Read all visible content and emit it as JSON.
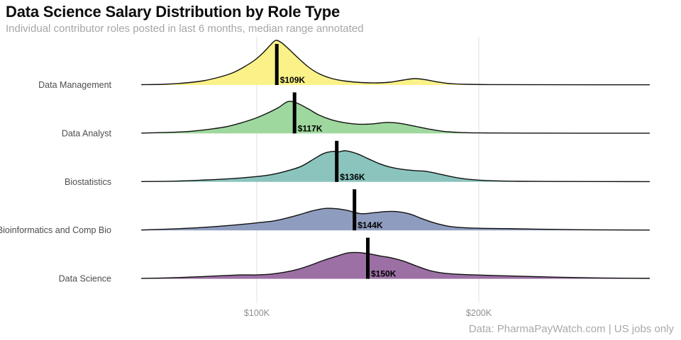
{
  "header": {
    "title": "Data Science Salary Distribution by Role Type",
    "subtitle": "Individual contributor roles posted in last 6 months, median range annotated"
  },
  "footer": {
    "credit": "Data: PharmaPayWatch.com | US jobs only"
  },
  "chart_data": {
    "type": "area",
    "variant": "ridgeline-density",
    "title": "Data Science Salary Distribution by Role Type",
    "xlabel": "",
    "ylabel": "",
    "x_unit": "USD thousands (salary)",
    "x_axis_range_k": [
      48,
      277
    ],
    "grid": "vertical-only",
    "legend_position": "none",
    "x_ticks": [
      {
        "value_k": 100,
        "label": "$100K"
      },
      {
        "value_k": 200,
        "label": "$200K"
      }
    ],
    "series": [
      {
        "label": "Data Management",
        "median_k": 109,
        "median_label": "$109K",
        "color": "#FAF288",
        "density": [
          [
            48,
            0.5
          ],
          [
            58,
            1
          ],
          [
            68,
            3
          ],
          [
            76,
            6
          ],
          [
            83,
            11
          ],
          [
            89,
            17
          ],
          [
            94,
            25
          ],
          [
            99,
            35
          ],
          [
            103,
            46
          ],
          [
            106,
            56
          ],
          [
            108.5,
            63
          ],
          [
            111,
            60
          ],
          [
            114,
            52
          ],
          [
            118,
            40
          ],
          [
            123,
            26
          ],
          [
            128,
            16
          ],
          [
            134,
            9
          ],
          [
            140,
            5.5
          ],
          [
            147,
            3.5
          ],
          [
            154,
            3
          ],
          [
            160,
            4
          ],
          [
            166,
            7
          ],
          [
            171,
            9
          ],
          [
            176,
            7.5
          ],
          [
            181,
            4.5
          ],
          [
            187,
            2
          ],
          [
            194,
            1
          ],
          [
            205,
            0.6
          ],
          [
            230,
            0.4
          ],
          [
            277,
            0.3
          ]
        ]
      },
      {
        "label": "Data Analyst",
        "median_k": 117,
        "median_label": "$117K",
        "color": "#9FD89E",
        "density": [
          [
            48,
            0.5
          ],
          [
            60,
            1.5
          ],
          [
            70,
            3
          ],
          [
            80,
            6.5
          ],
          [
            87,
            10
          ],
          [
            93,
            15
          ],
          [
            99,
            21
          ],
          [
            105,
            29
          ],
          [
            110,
            37
          ],
          [
            114,
            45
          ],
          [
            118,
            43
          ],
          [
            123,
            35
          ],
          [
            128,
            26
          ],
          [
            134,
            19
          ],
          [
            140,
            15
          ],
          [
            146,
            13
          ],
          [
            152,
            13.5
          ],
          [
            158,
            15.5
          ],
          [
            164,
            14.5
          ],
          [
            170,
            11
          ],
          [
            177,
            6.5
          ],
          [
            184,
            3
          ],
          [
            191,
            1.5
          ],
          [
            200,
            0.8
          ],
          [
            220,
            0.5
          ],
          [
            277,
            0.3
          ]
        ]
      },
      {
        "label": "Biostatistics",
        "median_k": 136,
        "median_label": "$136K",
        "color": "#8AC4BD",
        "density": [
          [
            48,
            0.5
          ],
          [
            62,
            1
          ],
          [
            75,
            2.5
          ],
          [
            88,
            4.5
          ],
          [
            98,
            7
          ],
          [
            106,
            10
          ],
          [
            113,
            15
          ],
          [
            120,
            22
          ],
          [
            126,
            33
          ],
          [
            130,
            40
          ],
          [
            134,
            43
          ],
          [
            137,
            42.5
          ],
          [
            140,
            44
          ],
          [
            145,
            40
          ],
          [
            150,
            33
          ],
          [
            155,
            26
          ],
          [
            160,
            21
          ],
          [
            165,
            18
          ],
          [
            171,
            16
          ],
          [
            176,
            15
          ],
          [
            181,
            12
          ],
          [
            186,
            8.5
          ],
          [
            191,
            5.5
          ],
          [
            196,
            3.5
          ],
          [
            203,
            2
          ],
          [
            215,
            1
          ],
          [
            235,
            0.6
          ],
          [
            277,
            0.4
          ]
        ]
      },
      {
        "label": "Bioinformatics and Comp Bio",
        "median_k": 144,
        "median_label": "$144K",
        "color": "#8E9DBF",
        "density": [
          [
            48,
            0.5
          ],
          [
            62,
            2
          ],
          [
            75,
            4
          ],
          [
            86,
            6.5
          ],
          [
            95,
            9
          ],
          [
            101,
            11
          ],
          [
            107,
            13
          ],
          [
            113,
            17
          ],
          [
            119,
            22
          ],
          [
            125,
            27.5
          ],
          [
            131,
            31
          ],
          [
            136,
            30.5
          ],
          [
            141,
            28
          ],
          [
            147,
            23.5
          ],
          [
            153,
            25
          ],
          [
            158,
            26.5
          ],
          [
            163,
            26.5
          ],
          [
            169,
            23
          ],
          [
            174,
            17
          ],
          [
            180,
            10.5
          ],
          [
            186,
            6
          ],
          [
            192,
            4
          ],
          [
            200,
            3
          ],
          [
            212,
            2.5
          ],
          [
            225,
            1.8
          ],
          [
            245,
            0.9
          ],
          [
            277,
            0.4
          ]
        ]
      },
      {
        "label": "Data Science",
        "median_k": 150,
        "median_label": "$150K",
        "color": "#9C70A5",
        "density": [
          [
            48,
            0.5
          ],
          [
            62,
            1.5
          ],
          [
            75,
            3
          ],
          [
            85,
            4.5
          ],
          [
            93,
            5.5
          ],
          [
            100,
            5.5
          ],
          [
            106,
            6.5
          ],
          [
            112,
            9
          ],
          [
            118,
            13
          ],
          [
            124,
            19
          ],
          [
            130,
            26
          ],
          [
            136,
            32
          ],
          [
            141,
            36.5
          ],
          [
            146,
            37
          ],
          [
            151,
            35
          ],
          [
            156,
            32
          ],
          [
            160,
            30
          ],
          [
            166,
            25
          ],
          [
            172,
            18
          ],
          [
            178,
            11.5
          ],
          [
            184,
            8
          ],
          [
            190,
            6.5
          ],
          [
            198,
            5.5
          ],
          [
            208,
            4.5
          ],
          [
            220,
            3.5
          ],
          [
            235,
            2.3
          ],
          [
            255,
            1.2
          ],
          [
            277,
            0.6
          ]
        ]
      }
    ],
    "style_colors": {
      "curve_stroke": "#111111",
      "median_bar": "#000000",
      "gridline": "#e2e2e2",
      "row_label_text": "#4d4d4d",
      "tick_label_text": "#8f8f8f"
    }
  }
}
